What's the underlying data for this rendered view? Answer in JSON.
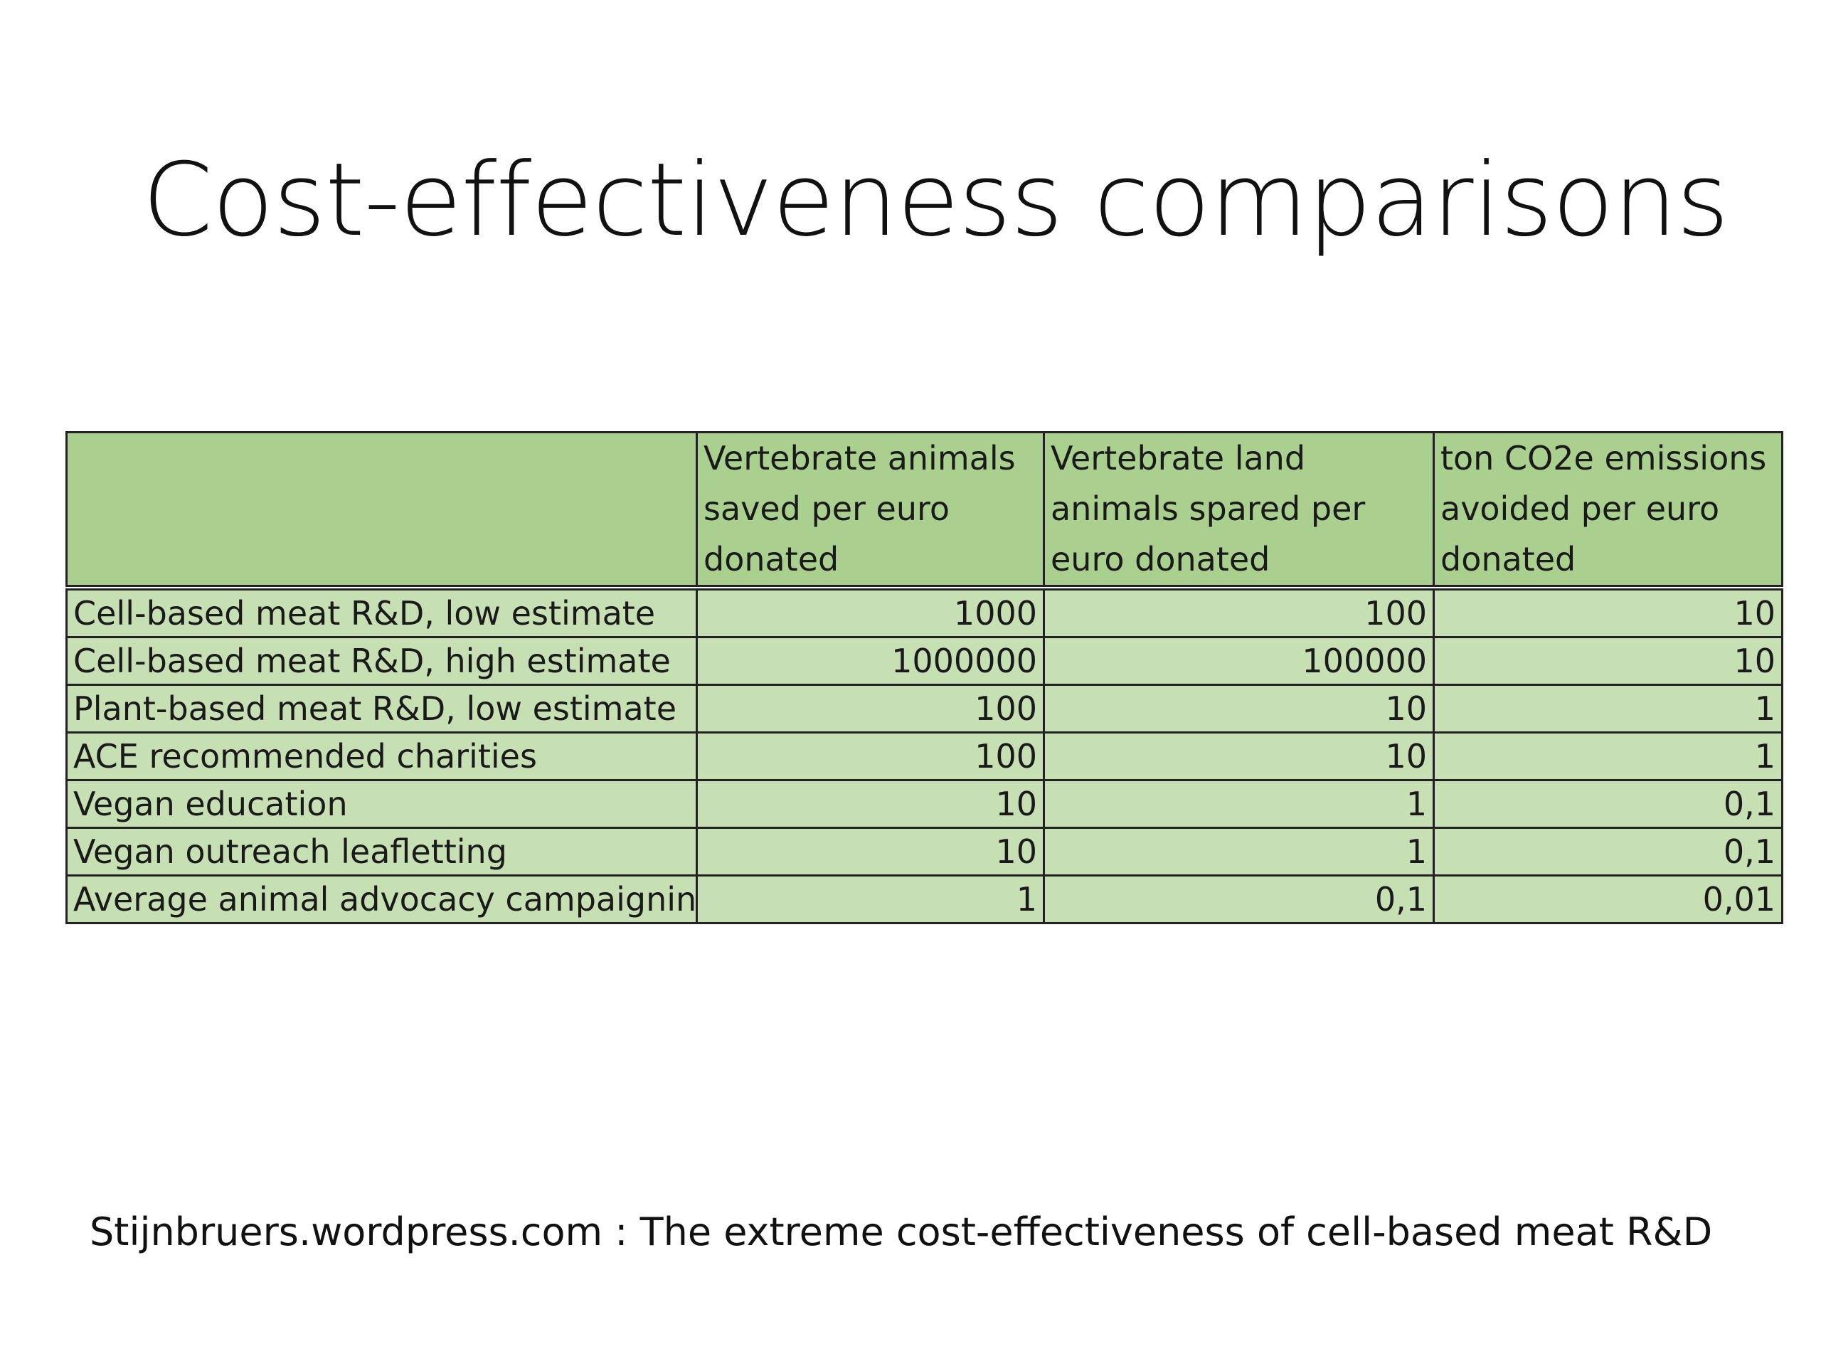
{
  "slide": {
    "title": "Cost-effectiveness comparisons",
    "citation": "Stijnbruers.wordpress.com : The extreme cost-effectiveness of cell-based meat R&D"
  },
  "table": {
    "headers": [
      "",
      "Vertebrate animals saved per euro donated",
      "Vertebrate land animals spared per euro donated",
      "ton CO2e emissions avoided per euro donated"
    ],
    "rows": [
      {
        "label": "Cell-based meat R&D, low estimate",
        "values": [
          "1000",
          "100",
          "10"
        ]
      },
      {
        "label": "Cell-based meat R&D, high estimate",
        "values": [
          "1000000",
          "100000",
          "10"
        ]
      },
      {
        "label": "Plant-based meat R&D, low estimate",
        "values": [
          "100",
          "10",
          "1"
        ]
      },
      {
        "label": "ACE recommended charities",
        "values": [
          "100",
          "10",
          "1"
        ]
      },
      {
        "label": "Vegan education",
        "values": [
          "10",
          "1",
          "0,1"
        ]
      },
      {
        "label": "Vegan outreach leafletting",
        "values": [
          "10",
          "1",
          "0,1"
        ]
      },
      {
        "label": "Average animal advocacy campaigning",
        "values": [
          "1",
          "0,1",
          "0,01"
        ]
      }
    ],
    "colors": {
      "header_fill": "#a9d08e",
      "body_fill": "#c6e0b4",
      "border": "#222222"
    }
  }
}
